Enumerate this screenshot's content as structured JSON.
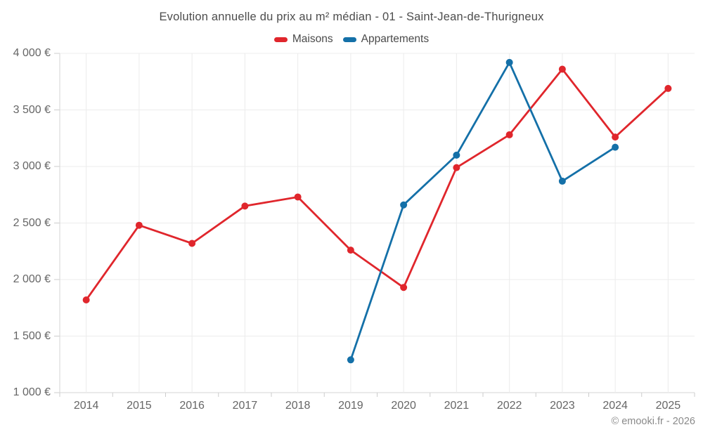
{
  "title": "Evolution annuelle du prix au m² médian - 01 - Saint-Jean-de-Thurigneux",
  "attribution": "© emooki.fr - 2026",
  "chart_data": {
    "type": "line",
    "title": "Evolution annuelle du prix au m² médian - 01 - Saint-Jean-de-Thurigneux",
    "categories": [
      "2014",
      "2015",
      "2016",
      "2017",
      "2018",
      "2019",
      "2020",
      "2021",
      "2022",
      "2023",
      "2024",
      "2025"
    ],
    "series": [
      {
        "name": "Maisons",
        "color": "#e0262c",
        "values": [
          1820,
          2480,
          2320,
          2650,
          2730,
          2260,
          1930,
          2990,
          3280,
          3860,
          3260,
          3690
        ]
      },
      {
        "name": "Appartements",
        "color": "#1470a8",
        "values": [
          null,
          null,
          null,
          null,
          null,
          1290,
          2660,
          3100,
          3920,
          2870,
          3170,
          null
        ]
      }
    ],
    "xlabel": "",
    "ylabel": "",
    "ylim": [
      1000,
      4000
    ],
    "ytick_step": 500,
    "ytick_labels": [
      "1 000 €",
      "1 500 €",
      "2 000 €",
      "2 500 €",
      "3 000 €",
      "3 500 €",
      "4 000 €"
    ],
    "currency_suffix": "€",
    "grid": true,
    "legend_position": "top",
    "colors": {
      "grid": "#ececec",
      "axis": "#d6d6d6",
      "tick": "#cccccc",
      "title_text": "#4d4d4d",
      "axis_text": "#666666",
      "attribution_text": "#8a8a8a"
    }
  }
}
